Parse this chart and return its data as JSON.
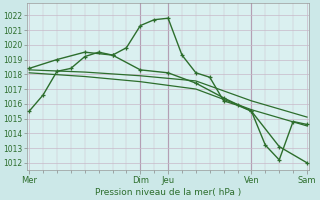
{
  "bg_color": "#cce8e8",
  "plot_bg_color": "#daf0f0",
  "grid_color": "#c8b8c8",
  "line_color": "#2d6e2d",
  "title": "Pression niveau de la mer( hPa )",
  "x_ticks_labels": [
    "Mer",
    "",
    "",
    "Dim",
    "Jeu",
    "",
    "",
    "Ven",
    "",
    "",
    "Sam"
  ],
  "x_major_labels": [
    "Mer",
    "Dim",
    "Jeu",
    "Ven",
    "Sam"
  ],
  "x_major_pos": [
    0,
    48,
    60,
    96,
    120
  ],
  "ylim": [
    1011.5,
    1022.8
  ],
  "yticks": [
    1012,
    1013,
    1014,
    1015,
    1016,
    1017,
    1018,
    1019,
    1020,
    1021,
    1022
  ],
  "series": [
    {
      "x": [
        0,
        6,
        12,
        18,
        24,
        30,
        36,
        42,
        48,
        54,
        60,
        66,
        72,
        78,
        84,
        90,
        96,
        102,
        108,
        114,
        120
      ],
      "y": [
        1015.5,
        1016.6,
        1018.2,
        1018.4,
        1019.2,
        1019.5,
        1019.3,
        1019.8,
        1021.3,
        1021.7,
        1021.8,
        1019.3,
        1018.1,
        1017.8,
        1016.2,
        1015.9,
        1015.5,
        1013.2,
        1012.2,
        1014.8,
        1014.6
      ],
      "marker": "+",
      "lw": 1.0
    },
    {
      "x": [
        0,
        24,
        48,
        72,
        96,
        120
      ],
      "y": [
        1018.3,
        1018.15,
        1017.9,
        1017.55,
        1016.2,
        1015.1
      ],
      "marker": null,
      "lw": 0.9
    },
    {
      "x": [
        0,
        24,
        48,
        72,
        96,
        120
      ],
      "y": [
        1018.1,
        1017.85,
        1017.5,
        1017.0,
        1015.6,
        1014.5
      ],
      "marker": null,
      "lw": 0.9
    },
    {
      "x": [
        0,
        12,
        24,
        36,
        48,
        60,
        72,
        84,
        96,
        108,
        120
      ],
      "y": [
        1018.4,
        1019.0,
        1019.5,
        1019.3,
        1018.3,
        1018.1,
        1017.4,
        1016.4,
        1015.5,
        1013.1,
        1012.0
      ],
      "marker": "+",
      "lw": 1.0
    }
  ],
  "vlines_x": [
    48,
    60,
    96
  ],
  "vline_color": "#886688",
  "figsize": [
    3.2,
    2.0
  ],
  "dpi": 100
}
